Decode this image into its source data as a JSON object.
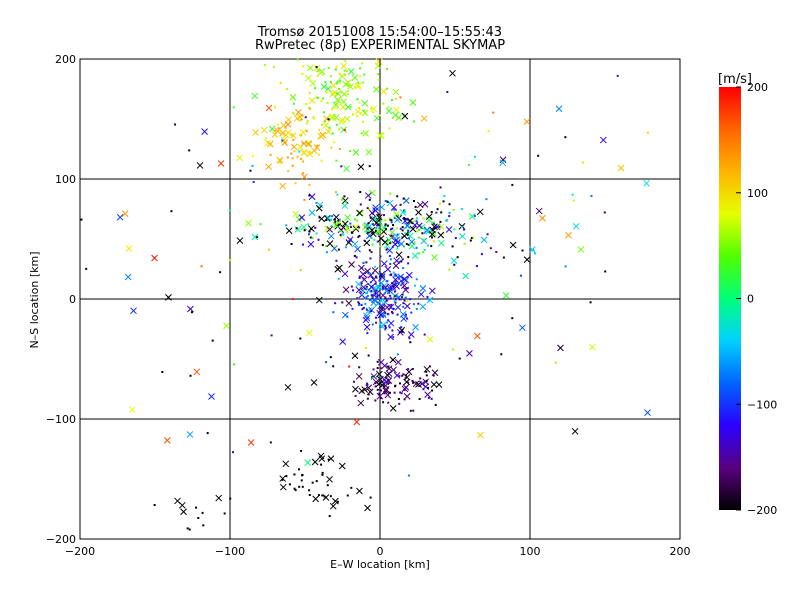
{
  "chart_data": {
    "type": "scatter",
    "title": "Tromsø 20151008 15:54:00–15:55:43",
    "subtitle": "RwPretec (8p) EXPERIMENTAL SKYMAP",
    "xlabel": "E–W location [km]",
    "ylabel": "N–S location [km]",
    "xlim": [
      -200,
      200
    ],
    "ylim": [
      -200,
      200
    ],
    "xticks": [
      -200,
      -100,
      0,
      100,
      200
    ],
    "yticks": [
      -200,
      -100,
      0,
      100,
      200
    ],
    "grid": true,
    "marker_types": [
      "dot",
      "x"
    ],
    "colorbar": {
      "title": "[m/s]",
      "min": -200,
      "max": 200,
      "ticks": [
        -200,
        -100,
        0,
        100,
        200
      ],
      "colors": [
        "#000000",
        "#5a0080",
        "#2a00ff",
        "#0064ff",
        "#00d2ff",
        "#00ff7a",
        "#50ff00",
        "#e6ff00",
        "#ffb400",
        "#ff6400",
        "#ff0000"
      ]
    },
    "clusters": [
      {
        "region": "upper-center",
        "cx": -25,
        "cy": 170,
        "rx": 20,
        "ry": 22,
        "n": 170,
        "vmean": 60,
        "vspread": 40
      },
      {
        "region": "upper-left",
        "cx": -55,
        "cy": 135,
        "rx": 12,
        "ry": 14,
        "n": 80,
        "vmean": 110,
        "vspread": 30
      },
      {
        "region": "mid-upper",
        "cx": 5,
        "cy": 58,
        "rx": 28,
        "ry": 12,
        "n": 320,
        "vmean": -50,
        "vspread": 120
      },
      {
        "region": "center",
        "cx": 2,
        "cy": 2,
        "rx": 12,
        "ry": 14,
        "n": 240,
        "vmean": -110,
        "vspread": 70
      },
      {
        "region": "lower-center",
        "cx": 10,
        "cy": -70,
        "rx": 15,
        "ry": 10,
        "n": 110,
        "vmean": -170,
        "vspread": 40
      },
      {
        "region": "lower-left",
        "cx": -40,
        "cy": -155,
        "rx": 15,
        "ry": 12,
        "n": 45,
        "vmean": -200,
        "vspread": 0
      },
      {
        "region": "bottom-left-edge",
        "cx": -115,
        "cy": -175,
        "rx": 12,
        "ry": 18,
        "n": 14,
        "vmean": -200,
        "vspread": 0
      },
      {
        "region": "scattered",
        "cx": 0,
        "cy": 30,
        "rx": 110,
        "ry": 80,
        "n": 190,
        "vmean": 0,
        "vspread": 200
      }
    ]
  }
}
